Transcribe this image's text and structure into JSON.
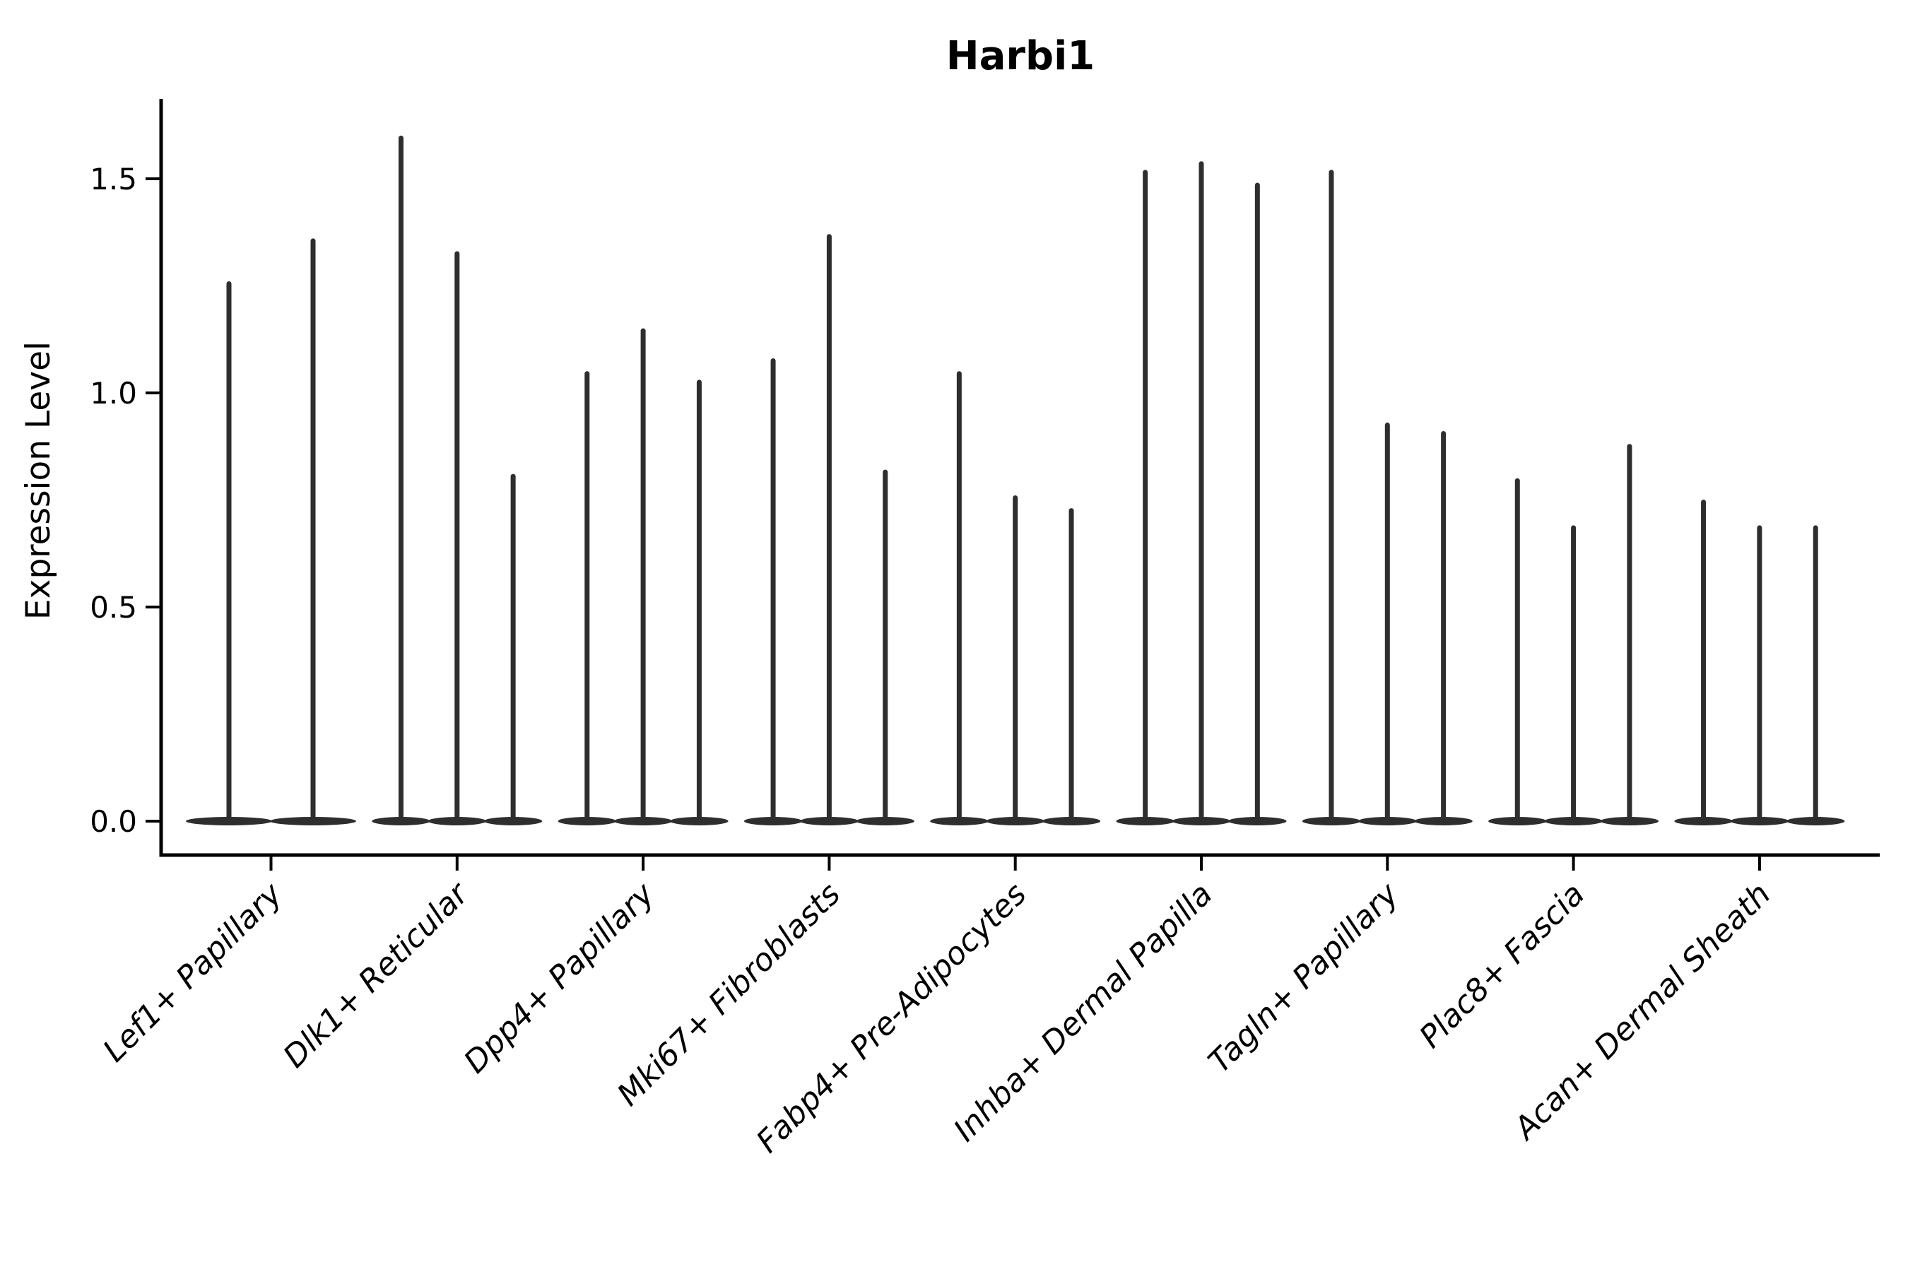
{
  "title": "Harbi1",
  "ylabel": "Expression Level",
  "colors": {
    "violin": "#2e2e2e",
    "axis": "#000000",
    "background": "#ffffff",
    "tick_label": "#000000"
  },
  "chart_data": {
    "type": "violin",
    "title": "Harbi1",
    "xlabel": "",
    "ylabel": "Expression Level",
    "ylim": [
      -0.08,
      1.69
    ],
    "yticks": [
      0.0,
      0.5,
      1.0,
      1.5
    ],
    "ytick_labels": [
      "0.0",
      "0.5",
      "1.0",
      "1.5"
    ],
    "grid": false,
    "legend": "none",
    "xtick_rotation_deg": 45,
    "categories": [
      "Lef1+ Papillary",
      "Dlk1+ Reticular",
      "Dpp4+ Papillary",
      "Mki67+ Fibroblasts",
      "Fabp4+ Pre-Adipocytes",
      "Inhba+ Dermal Papilla",
      "Tagln+ Papillary",
      "Plac8+ Fascia",
      "Acan+ Dermal Sheath"
    ],
    "shape_note": "Sparse single-cell expression: each violin is a wide flat lobe at 0 with a thin vertical tail rising to its maximum expression value.",
    "violins": [
      {
        "category": "Lef1+ Papillary",
        "maxima": [
          1.26,
          1.36
        ]
      },
      {
        "category": "Dlk1+ Reticular",
        "maxima": [
          1.6,
          1.33,
          0.81
        ]
      },
      {
        "category": "Dpp4+ Papillary",
        "maxima": [
          1.05,
          1.15,
          1.03
        ]
      },
      {
        "category": "Mki67+ Fibroblasts",
        "maxima": [
          1.08,
          1.37,
          0.82
        ]
      },
      {
        "category": "Fabp4+ Pre-Adipocytes",
        "maxima": [
          1.05,
          0.76,
          0.73
        ]
      },
      {
        "category": "Inhba+ Dermal Papilla",
        "maxima": [
          1.52,
          1.54,
          1.49
        ]
      },
      {
        "category": "Tagln+ Papillary",
        "maxima": [
          1.52,
          0.93,
          0.91
        ]
      },
      {
        "category": "Plac8+ Fascia",
        "maxima": [
          0.8,
          0.69,
          0.88
        ]
      },
      {
        "category": "Acan+ Dermal Sheath",
        "maxima": [
          0.75,
          0.69,
          0.69
        ]
      }
    ]
  }
}
